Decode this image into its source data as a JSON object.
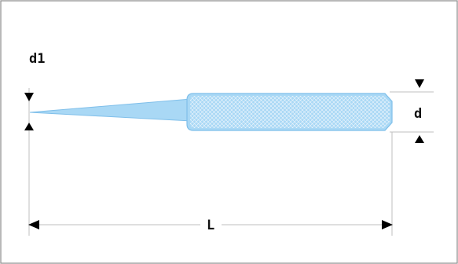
{
  "diagram": {
    "labels": {
      "tip_diameter": "d1",
      "body_diameter": "d",
      "overall_length": "L"
    },
    "colors": {
      "tool_fill": "#a9d8f5",
      "tool_outline": "#7fbfea",
      "knurl": "#ffffff",
      "dimension_lines": "#bfbfbf",
      "arrowheads": "#000000",
      "text": "#111111",
      "frame_border": "#8a8a8a"
    }
  }
}
